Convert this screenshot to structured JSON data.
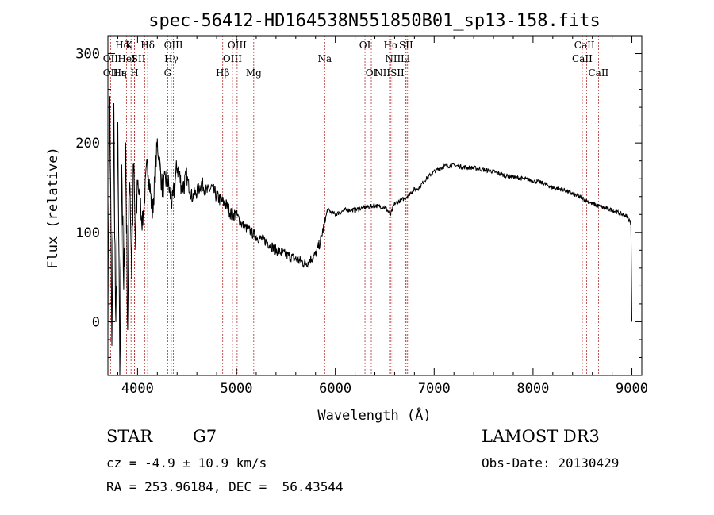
{
  "chart_data": {
    "type": "line",
    "title": "spec-56412-HD164538N551850B01_sp13-158.fits",
    "xlabel": "Wavelength (Å)",
    "ylabel": "Flux (relative)",
    "xlim": [
      3700,
      9100
    ],
    "ylim": [
      -60,
      320
    ],
    "xticks": [
      4000,
      5000,
      6000,
      7000,
      8000,
      9000
    ],
    "yticks": [
      0,
      100,
      200,
      300
    ],
    "series": [
      {
        "name": "flux",
        "x": [
          3700,
          3720,
          3740,
          3760,
          3780,
          3800,
          3820,
          3840,
          3860,
          3880,
          3900,
          3920,
          3940,
          3960,
          3980,
          4000,
          4050,
          4100,
          4150,
          4200,
          4250,
          4300,
          4350,
          4400,
          4450,
          4500,
          4550,
          4600,
          4650,
          4700,
          4750,
          4800,
          4850,
          4900,
          4950,
          5000,
          5050,
          5100,
          5150,
          5200,
          5300,
          5400,
          5500,
          5600,
          5700,
          5800,
          5850,
          5900,
          5920,
          6000,
          6100,
          6200,
          6300,
          6400,
          6500,
          6560,
          6600,
          6700,
          6800,
          6850,
          6900,
          7000,
          7100,
          7200,
          7300,
          7400,
          7500,
          7600,
          7700,
          7800,
          7900,
          8000,
          8100,
          8200,
          8300,
          8400,
          8500,
          8600,
          8700,
          8800,
          8900,
          8950,
          8990,
          9000
        ],
        "y": [
          20,
          250,
          -40,
          230,
          -30,
          210,
          -70,
          190,
          20,
          200,
          0,
          180,
          60,
          170,
          80,
          160,
          110,
          180,
          120,
          200,
          150,
          160,
          130,
          175,
          150,
          160,
          140,
          145,
          155,
          145,
          150,
          140,
          135,
          130,
          120,
          120,
          110,
          105,
          100,
          95,
          90,
          80,
          75,
          70,
          65,
          75,
          90,
          115,
          125,
          120,
          125,
          125,
          128,
          130,
          128,
          120,
          132,
          138,
          148,
          150,
          158,
          168,
          174,
          175,
          173,
          172,
          170,
          168,
          164,
          162,
          160,
          158,
          155,
          150,
          148,
          143,
          138,
          132,
          128,
          125,
          120,
          118,
          110,
          0
        ]
      }
    ],
    "lines": [
      {
        "name": "CaII",
        "x": 3934
      },
      {
        "name": "CaII",
        "x": 3969
      },
      {
        "name": "Hε",
        "x": 3970
      },
      {
        "name": "Hδ",
        "x": 4102
      },
      {
        "name": "Hγ",
        "x": 4341
      },
      {
        "name": "G",
        "x": 4305
      },
      {
        "name": "OII",
        "x": 3727
      },
      {
        "name": "HeI",
        "x": 3889
      },
      {
        "name": "SII",
        "x": 4072
      },
      {
        "name": "OIII",
        "x": 4363
      },
      {
        "name": "Hβ",
        "x": 4861
      },
      {
        "name": "OIII",
        "x": 4959
      },
      {
        "name": "OIII",
        "x": 5007
      },
      {
        "name": "Mg",
        "x": 5175
      },
      {
        "name": "Na",
        "x": 5893
      },
      {
        "name": "OI",
        "x": 6300
      },
      {
        "name": "OI",
        "x": 6364
      },
      {
        "name": "NII",
        "x": 6548
      },
      {
        "name": "Hα",
        "x": 6563
      },
      {
        "name": "NII",
        "x": 6583
      },
      {
        "name": "Li",
        "x": 6708
      },
      {
        "name": "SII",
        "x": 6716
      },
      {
        "name": "SII",
        "x": 6731
      },
      {
        "name": "CaII",
        "x": 8498
      },
      {
        "name": "CaII",
        "x": 8542
      },
      {
        "name": "CaII",
        "x": 8662
      }
    ],
    "labels": [
      {
        "text": "Hδ",
        "x": 3845,
        "row": 1
      },
      {
        "text": "K",
        "x": 3915,
        "row": 1
      },
      {
        "text": "Hδ",
        "x": 4102,
        "row": 1
      },
      {
        "text": "OIII",
        "x": 4363,
        "row": 1
      },
      {
        "text": "OIII",
        "x": 5007,
        "row": 1
      },
      {
        "text": "OI",
        "x": 6300,
        "row": 1
      },
      {
        "text": "Hα",
        "x": 6563,
        "row": 1
      },
      {
        "text": "SII",
        "x": 6716,
        "row": 1
      },
      {
        "text": "CaII",
        "x": 8520,
        "row": 1
      },
      {
        "text": "OII",
        "x": 3727,
        "row": 2
      },
      {
        "text": "HeI",
        "x": 3889,
        "row": 2
      },
      {
        "text": "SII",
        "x": 4010,
        "row": 2
      },
      {
        "text": "Hγ",
        "x": 4341,
        "row": 2
      },
      {
        "text": "OIII",
        "x": 4959,
        "row": 2
      },
      {
        "text": "Na",
        "x": 5893,
        "row": 2
      },
      {
        "text": "NII",
        "x": 6583,
        "row": 2
      },
      {
        "text": "Li",
        "x": 6708,
        "row": 2
      },
      {
        "text": "CaII",
        "x": 8498,
        "row": 2
      },
      {
        "text": "OII",
        "x": 3727,
        "row": 3
      },
      {
        "text": "Hε",
        "x": 3820,
        "row": 3
      },
      {
        "text": "η",
        "x": 3860,
        "row": 3
      },
      {
        "text": "H",
        "x": 3969,
        "row": 3
      },
      {
        "text": "G",
        "x": 4305,
        "row": 3
      },
      {
        "text": "Hβ",
        "x": 4861,
        "row": 3
      },
      {
        "text": "Mg",
        "x": 5175,
        "row": 3
      },
      {
        "text": "OI",
        "x": 6364,
        "row": 3
      },
      {
        "text": "NIISII",
        "x": 6548,
        "row": 3
      },
      {
        "text": "CaII",
        "x": 8662,
        "row": 3
      }
    ]
  },
  "info": {
    "object_type": "STAR",
    "subclass": "G7",
    "cz": "cz = -4.9 ± 10.9 km/s",
    "radec": "RA = 253.96184, DEC =  56.43544",
    "survey": "LAMOST DR3",
    "obs_date": "Obs-Date: 20130429"
  }
}
